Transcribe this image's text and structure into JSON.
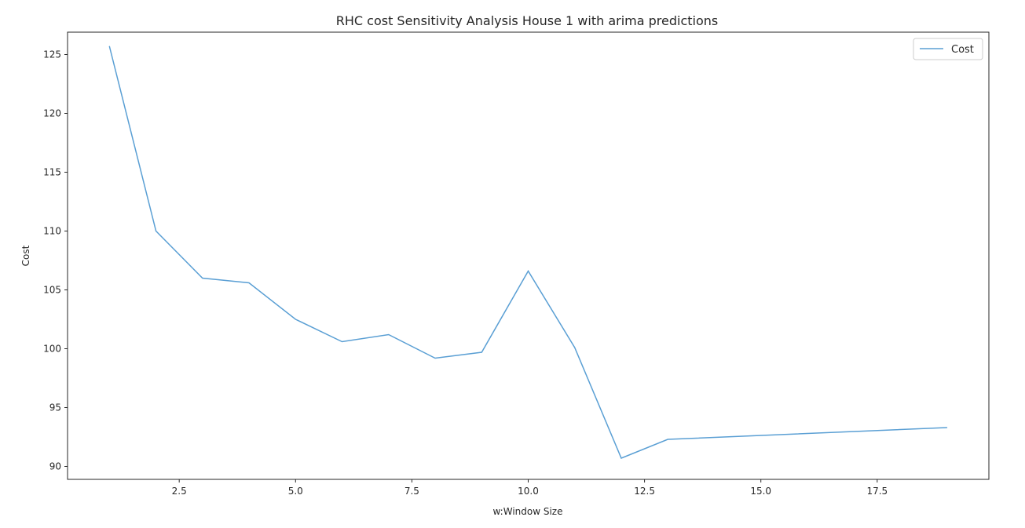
{
  "chart_data": {
    "type": "line",
    "title": "RHC cost Sensitivity Analysis House 1 with arima predictions",
    "xlabel": "w:Window Size",
    "ylabel": "Cost",
    "xlim": [
      0.1,
      19.9
    ],
    "ylim": [
      88.9,
      126.9
    ],
    "xticks": [
      2.5,
      5.0,
      7.5,
      10.0,
      12.5,
      15.0,
      17.5
    ],
    "xtick_labels": [
      "2.5",
      "5.0",
      "7.5",
      "10.0",
      "12.5",
      "15.0",
      "17.5"
    ],
    "yticks": [
      90,
      95,
      100,
      105,
      110,
      115,
      120,
      125
    ],
    "ytick_labels": [
      "90",
      "95",
      "100",
      "105",
      "110",
      "115",
      "120",
      "125"
    ],
    "grid": false,
    "legend_position": "top-right",
    "series": [
      {
        "name": "Cost",
        "color": "#5a9fd4",
        "x": [
          1,
          2,
          3,
          4,
          5,
          6,
          7,
          8,
          9,
          10,
          11,
          12,
          13,
          19
        ],
        "y": [
          125.7,
          110.0,
          106.0,
          105.6,
          102.5,
          100.6,
          101.2,
          99.2,
          99.7,
          106.6,
          100.1,
          90.7,
          92.3,
          93.3
        ]
      }
    ]
  }
}
